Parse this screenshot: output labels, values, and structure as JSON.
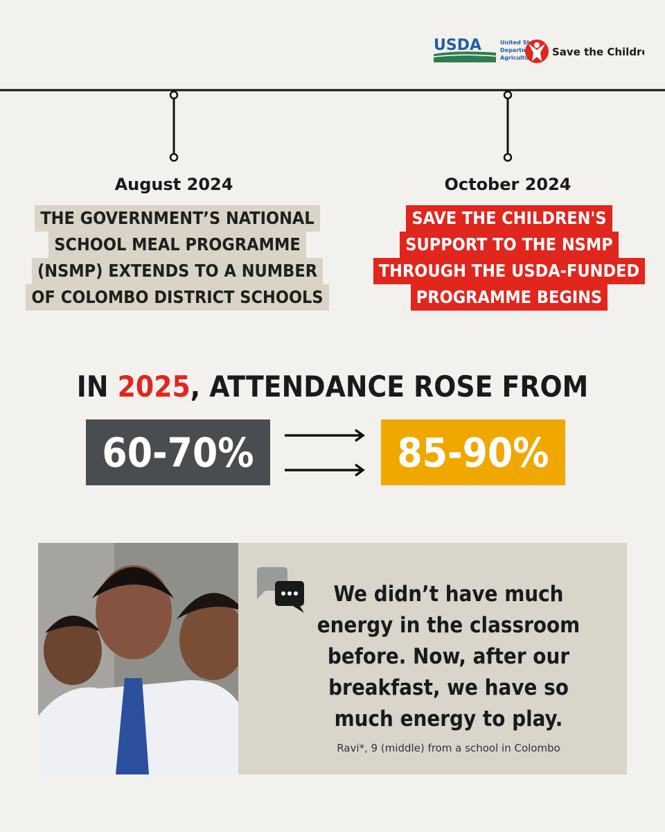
{
  "logos": {
    "usda": "USDA",
    "usda_name": [
      "United States",
      "Department of",
      "Agriculture"
    ],
    "stc": "Save the Children"
  },
  "timeline": [
    {
      "date": "August 2024",
      "lines": [
        "THE GOVERNMENT’S NATIONAL",
        "SCHOOL MEAL PROGRAMME",
        "(NSMP) EXTENDS TO A NUMBER",
        "OF COLOMBO DISTRICT SCHOOLS"
      ]
    },
    {
      "date": "October 2024",
      "lines": [
        "SAVE THE CHILDREN'S",
        "SUPPORT TO THE NSMP",
        "THROUGH THE USDA-FUNDED",
        "PROGRAMME BEGINS"
      ]
    }
  ],
  "headline": {
    "before": "IN",
    "year": "2025",
    "after": ", ATTENDANCE ROSE FROM"
  },
  "from": "60-70%",
  "to": "85-90%",
  "quote": {
    "lines": [
      "We didn’t have much",
      "energy in the classroom",
      "before. Now, after our",
      "breakfast, we have so",
      "much energy to play."
    ],
    "attribution": "Ravi*, 9 (middle) from a school in Colombo"
  }
}
